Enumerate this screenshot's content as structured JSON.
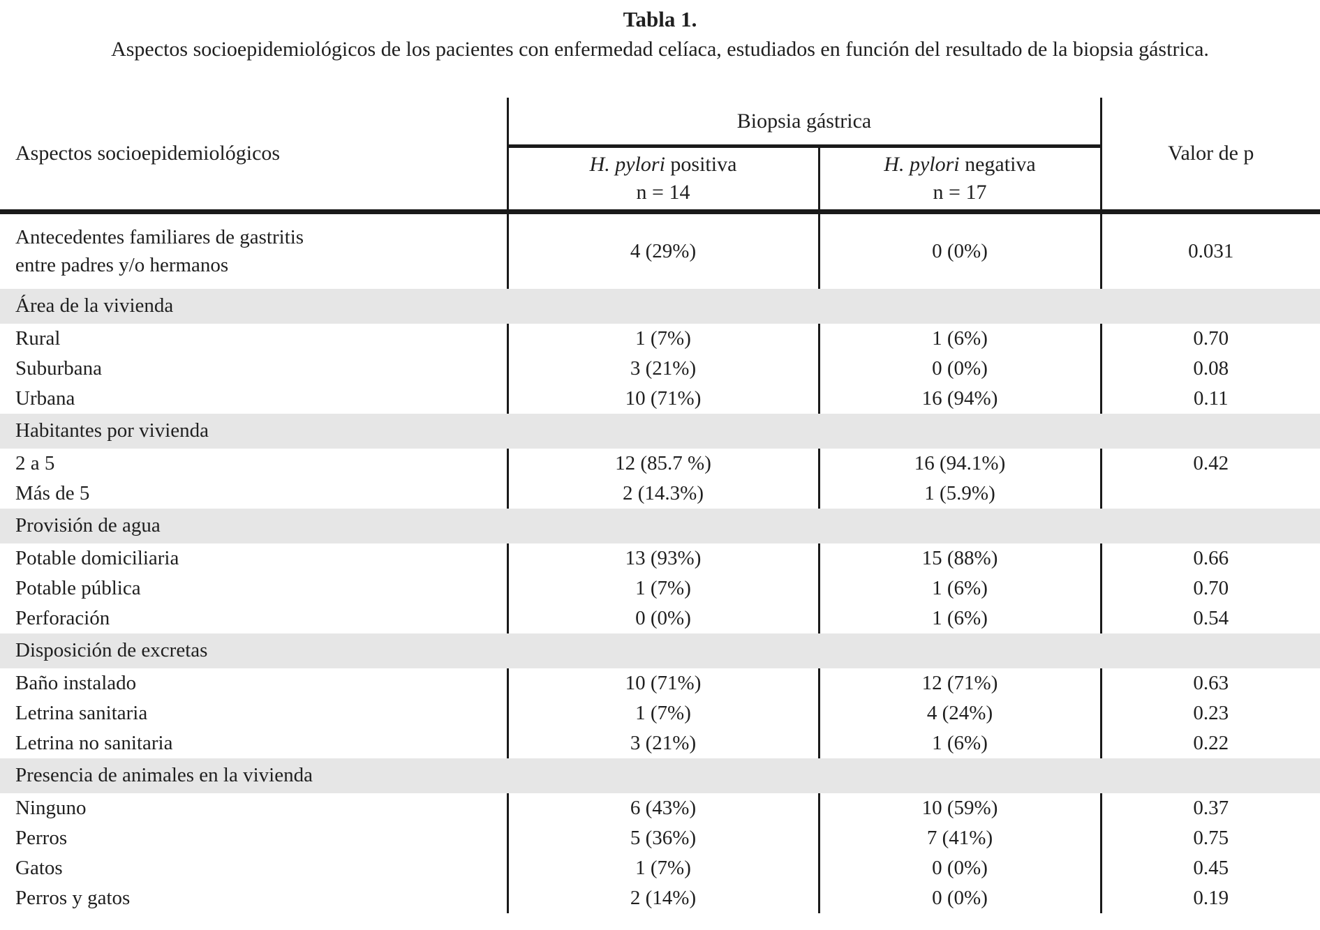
{
  "title": "Tabla 1.",
  "subtitle": "Aspectos socioepidemiológicos de los pacientes con enfermedad celíaca, estudiados en función del resultado de la biopsia gástrica.",
  "colors": {
    "section_band_bg": "#e6e6e6",
    "rule_color": "#1a1a1a",
    "text_color": "#1f1f1f"
  },
  "table": {
    "col1_header": "Aspectos socioepidemiológicos",
    "group_header": "Biopsia gástrica",
    "p_header": "Valor de p",
    "sub_headers": [
      {
        "italic": "H. pylori",
        "rest": " positiva",
        "n": "n = 14"
      },
      {
        "italic": "H. pylori",
        "rest": " negativa",
        "n": "n = 17"
      }
    ],
    "rows": [
      {
        "type": "data2",
        "label": "Antecedentes familiares de gastritis",
        "label2": "entre padres y/o hermanos",
        "pos": "4 (29%)",
        "neg": "0 (0%)",
        "p": "0.031"
      },
      {
        "type": "section",
        "label": "Área de la vivienda"
      },
      {
        "type": "data",
        "label": "Rural",
        "pos": "1 (7%)",
        "neg": "1 (6%)",
        "p": "0.70"
      },
      {
        "type": "data",
        "label": "Suburbana",
        "pos": "3 (21%)",
        "neg": "0 (0%)",
        "p": "0.08"
      },
      {
        "type": "data",
        "label": "Urbana",
        "pos": "10 (71%)",
        "neg": "16 (94%)",
        "p": "0.11"
      },
      {
        "type": "section",
        "label": "Habitantes por vivienda"
      },
      {
        "type": "data",
        "label": "2 a 5",
        "pos": "12 (85.7 %)",
        "neg": "16 (94.1%)",
        "p": "0.42"
      },
      {
        "type": "data",
        "label": "Más de 5",
        "pos": "2 (14.3%)",
        "neg": "1 (5.9%)",
        "p": ""
      },
      {
        "type": "section",
        "label": "Provisión de agua"
      },
      {
        "type": "data",
        "label": "Potable domiciliaria",
        "pos": "13 (93%)",
        "neg": "15 (88%)",
        "p": "0.66"
      },
      {
        "type": "data",
        "label": "Potable pública",
        "pos": "1 (7%)",
        "neg": "1 (6%)",
        "p": "0.70"
      },
      {
        "type": "data",
        "label": "Perforación",
        "pos": "0 (0%)",
        "neg": "1 (6%)",
        "p": "0.54"
      },
      {
        "type": "section",
        "label": "Disposición de excretas"
      },
      {
        "type": "data",
        "label": "Baño instalado",
        "pos": "10 (71%)",
        "neg": "12 (71%)",
        "p": "0.63"
      },
      {
        "type": "data",
        "label": "Letrina sanitaria",
        "pos": "1 (7%)",
        "neg": "4 (24%)",
        "p": "0.23"
      },
      {
        "type": "data",
        "label": "Letrina no sanitaria",
        "pos": "3 (21%)",
        "neg": "1 (6%)",
        "p": "0.22"
      },
      {
        "type": "section",
        "label": "Presencia de animales en la vivienda"
      },
      {
        "type": "data",
        "label": "Ninguno",
        "pos": "6 (43%)",
        "neg": "10 (59%)",
        "p": "0.37"
      },
      {
        "type": "data",
        "label": "Perros",
        "pos": "5 (36%)",
        "neg": "7 (41%)",
        "p": "0.75"
      },
      {
        "type": "data",
        "label": "Gatos",
        "pos": "1 (7%)",
        "neg": "0 (0%)",
        "p": "0.45"
      },
      {
        "type": "data",
        "label": "Perros y gatos",
        "pos": "2 (14%)",
        "neg": "0 (0%)",
        "p": "0.19"
      }
    ]
  }
}
